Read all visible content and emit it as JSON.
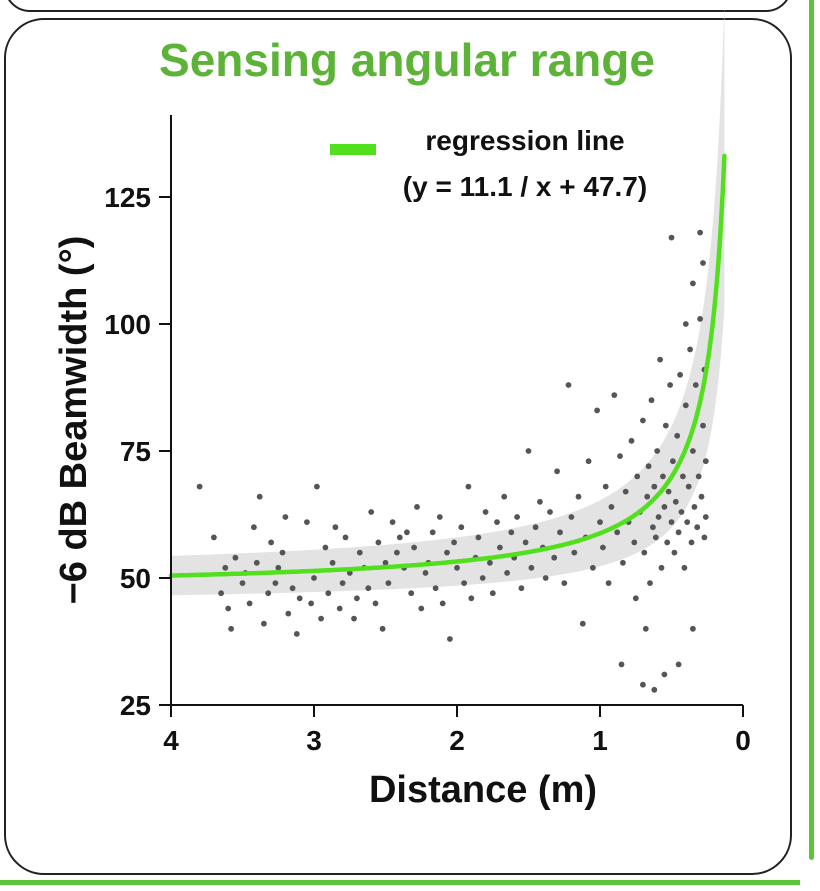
{
  "chart_data": {
    "type": "scatter",
    "title": "Sensing angular range",
    "xlabel": "Distance (m)",
    "ylabel": "−6 dB Beamwidth (°)",
    "xlim": [
      4,
      0
    ],
    "ylim": [
      25,
      137
    ],
    "x_ticks": [
      "4",
      "3",
      "2",
      "1",
      "0"
    ],
    "y_ticks": [
      "25",
      "50",
      "75",
      "100",
      "125"
    ],
    "legend": {
      "label_line1": "regression line",
      "label_line2": "(y = 11.1 / x + 47.7)",
      "placement": "top-right"
    },
    "regression": {
      "a": 11.1,
      "b": 47.7,
      "x_min": 0.13,
      "x_max": 4.0,
      "color": "#52e01e"
    },
    "confidence_band_color": "#e0e0e0",
    "point_color": "#555555",
    "points": [
      [
        3.8,
        68
      ],
      [
        3.7,
        58
      ],
      [
        3.65,
        47
      ],
      [
        3.62,
        52
      ],
      [
        3.6,
        44
      ],
      [
        3.58,
        40
      ],
      [
        3.55,
        54
      ],
      [
        3.5,
        49
      ],
      [
        3.48,
        51
      ],
      [
        3.45,
        45
      ],
      [
        3.42,
        60
      ],
      [
        3.4,
        53
      ],
      [
        3.38,
        66
      ],
      [
        3.35,
        41
      ],
      [
        3.32,
        47
      ],
      [
        3.3,
        57
      ],
      [
        3.27,
        49
      ],
      [
        3.25,
        52
      ],
      [
        3.22,
        55
      ],
      [
        3.2,
        62
      ],
      [
        3.18,
        43
      ],
      [
        3.15,
        48
      ],
      [
        3.12,
        39
      ],
      [
        3.1,
        46
      ],
      [
        3.05,
        61
      ],
      [
        3.02,
        45
      ],
      [
        3.0,
        50
      ],
      [
        2.98,
        68
      ],
      [
        2.95,
        42
      ],
      [
        2.92,
        56
      ],
      [
        2.9,
        47
      ],
      [
        2.87,
        53
      ],
      [
        2.85,
        60
      ],
      [
        2.82,
        44
      ],
      [
        2.8,
        49
      ],
      [
        2.78,
        58
      ],
      [
        2.75,
        51
      ],
      [
        2.72,
        42
      ],
      [
        2.7,
        46
      ],
      [
        2.68,
        55
      ],
      [
        2.65,
        52
      ],
      [
        2.62,
        48
      ],
      [
        2.6,
        63
      ],
      [
        2.57,
        45
      ],
      [
        2.55,
        57
      ],
      [
        2.52,
        40
      ],
      [
        2.5,
        53
      ],
      [
        2.48,
        49
      ],
      [
        2.45,
        61
      ],
      [
        2.42,
        55
      ],
      [
        2.4,
        58
      ],
      [
        2.37,
        52
      ],
      [
        2.35,
        59
      ],
      [
        2.32,
        47
      ],
      [
        2.3,
        56
      ],
      [
        2.28,
        64
      ],
      [
        2.25,
        44
      ],
      [
        2.22,
        51
      ],
      [
        2.2,
        53
      ],
      [
        2.17,
        59
      ],
      [
        2.15,
        48
      ],
      [
        2.12,
        62
      ],
      [
        2.1,
        45
      ],
      [
        2.07,
        55
      ],
      [
        2.05,
        38
      ],
      [
        2.02,
        57
      ],
      [
        2.0,
        52
      ],
      [
        1.97,
        60
      ],
      [
        1.95,
        49
      ],
      [
        1.92,
        68
      ],
      [
        1.9,
        46
      ],
      [
        1.87,
        54
      ],
      [
        1.85,
        58
      ],
      [
        1.82,
        50
      ],
      [
        1.8,
        63
      ],
      [
        1.77,
        53
      ],
      [
        1.75,
        47
      ],
      [
        1.72,
        61
      ],
      [
        1.7,
        56
      ],
      [
        1.67,
        66
      ],
      [
        1.65,
        51
      ],
      [
        1.62,
        59
      ],
      [
        1.6,
        54
      ],
      [
        1.58,
        62
      ],
      [
        1.55,
        48
      ],
      [
        1.52,
        57
      ],
      [
        1.5,
        75
      ],
      [
        1.48,
        52
      ],
      [
        1.45,
        60
      ],
      [
        1.42,
        65
      ],
      [
        1.4,
        56
      ],
      [
        1.38,
        50
      ],
      [
        1.35,
        63
      ],
      [
        1.32,
        54
      ],
      [
        1.3,
        71
      ],
      [
        1.28,
        59
      ],
      [
        1.25,
        49
      ],
      [
        1.22,
        88
      ],
      [
        1.2,
        62
      ],
      [
        1.18,
        55
      ],
      [
        1.15,
        66
      ],
      [
        1.12,
        41
      ],
      [
        1.1,
        58
      ],
      [
        1.08,
        73
      ],
      [
        1.05,
        52
      ],
      [
        1.02,
        83
      ],
      [
        1.0,
        61
      ],
      [
        0.98,
        56
      ],
      [
        0.96,
        68
      ],
      [
        0.94,
        49
      ],
      [
        0.92,
        64
      ],
      [
        0.9,
        86
      ],
      [
        0.88,
        59
      ],
      [
        0.86,
        74
      ],
      [
        0.85,
        33
      ],
      [
        0.84,
        53
      ],
      [
        0.82,
        67
      ],
      [
        0.8,
        61
      ],
      [
        0.78,
        77
      ],
      [
        0.76,
        57
      ],
      [
        0.75,
        46
      ],
      [
        0.74,
        70
      ],
      [
        0.72,
        63
      ],
      [
        0.7,
        81
      ],
      [
        0.69,
        55
      ],
      [
        0.68,
        40
      ],
      [
        0.67,
        66
      ],
      [
        0.66,
        72
      ],
      [
        0.65,
        49
      ],
      [
        0.64,
        85
      ],
      [
        0.63,
        60
      ],
      [
        0.62,
        68
      ],
      [
        0.61,
        58
      ],
      [
        0.6,
        75
      ],
      [
        0.59,
        62
      ],
      [
        0.58,
        93
      ],
      [
        0.57,
        52
      ],
      [
        0.56,
        70
      ],
      [
        0.55,
        64
      ],
      [
        0.54,
        80
      ],
      [
        0.53,
        57
      ],
      [
        0.52,
        67
      ],
      [
        0.51,
        88
      ],
      [
        0.5,
        61
      ],
      [
        0.5,
        117
      ],
      [
        0.49,
        73
      ],
      [
        0.48,
        55
      ],
      [
        0.47,
        65
      ],
      [
        0.46,
        78
      ],
      [
        0.45,
        59
      ],
      [
        0.44,
        90
      ],
      [
        0.43,
        63
      ],
      [
        0.42,
        70
      ],
      [
        0.41,
        52
      ],
      [
        0.4,
        84
      ],
      [
        0.4,
        100
      ],
      [
        0.39,
        61
      ],
      [
        0.38,
        68
      ],
      [
        0.37,
        95
      ],
      [
        0.36,
        57
      ],
      [
        0.35,
        75
      ],
      [
        0.35,
        108
      ],
      [
        0.34,
        64
      ],
      [
        0.33,
        88
      ],
      [
        0.32,
        60
      ],
      [
        0.31,
        70
      ],
      [
        0.3,
        101
      ],
      [
        0.3,
        118
      ],
      [
        0.29,
        66
      ],
      [
        0.28,
        80
      ],
      [
        0.28,
        112
      ],
      [
        0.27,
        58
      ],
      [
        0.27,
        91
      ],
      [
        0.26,
        73
      ],
      [
        0.26,
        62
      ],
      [
        0.55,
        31
      ],
      [
        0.45,
        33
      ],
      [
        0.35,
        40
      ],
      [
        0.62,
        28
      ],
      [
        0.7,
        29
      ]
    ]
  }
}
